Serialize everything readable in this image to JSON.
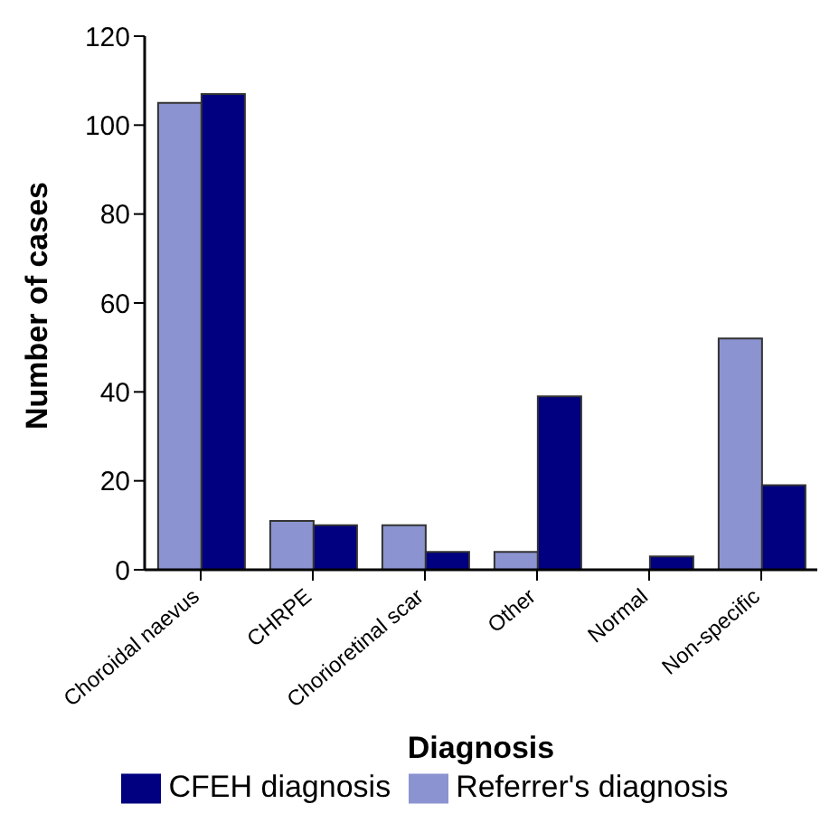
{
  "chart_data": {
    "type": "bar",
    "xlabel": "Diagnosis",
    "ylabel": "Number of cases",
    "categories": [
      "Choroidal naevus",
      "CHRPE",
      "Chorioretinal scar",
      "Other",
      "Normal",
      "Non-specific"
    ],
    "series": [
      {
        "name": "Referrer's diagnosis",
        "color": "#8b93d0",
        "values": [
          105,
          11,
          10,
          4,
          0,
          52
        ]
      },
      {
        "name": "CFEH diagnosis",
        "color": "#000080",
        "values": [
          107,
          10,
          4,
          39,
          3,
          19
        ]
      }
    ],
    "ylim": [
      0,
      120
    ],
    "yticks": [
      0,
      20,
      40,
      60,
      80,
      100,
      120
    ],
    "grid": false,
    "legend": "bottom"
  }
}
